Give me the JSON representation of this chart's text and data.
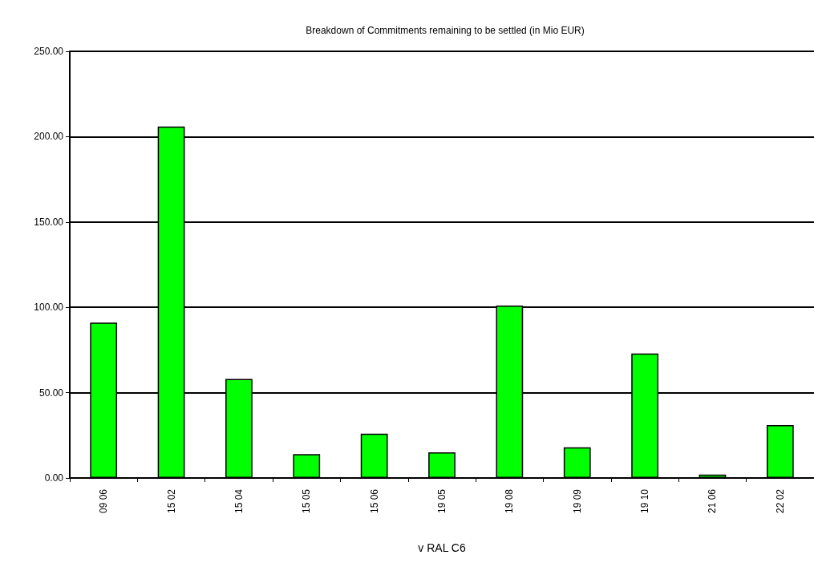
{
  "chart_data": {
    "type": "bar",
    "title": "Breakdown of Commitments remaining to be settled (in Mio EUR)",
    "xlabel": "v RAL C6",
    "categories": [
      "09 06",
      "15 02",
      "15 04",
      "15 05",
      "15 06",
      "19 05",
      "19 08",
      "19 09",
      "19 10",
      "21 06",
      "22 02"
    ],
    "series": [
      {
        "color": "#00ff00",
        "values": [
          91,
          206,
          58,
          14,
          26,
          15,
          101,
          18,
          73,
          2,
          31
        ]
      }
    ],
    "ylim": [
      0,
      250
    ],
    "yticks": [
      {
        "value": 0,
        "label": "0.00"
      },
      {
        "value": 50,
        "label": "50.00"
      },
      {
        "value": 100,
        "label": "100.00"
      },
      {
        "value": 150,
        "label": "150.00"
      },
      {
        "value": 200,
        "label": "200.00"
      },
      {
        "value": 250,
        "label": "250.00"
      }
    ],
    "grid": "y"
  }
}
